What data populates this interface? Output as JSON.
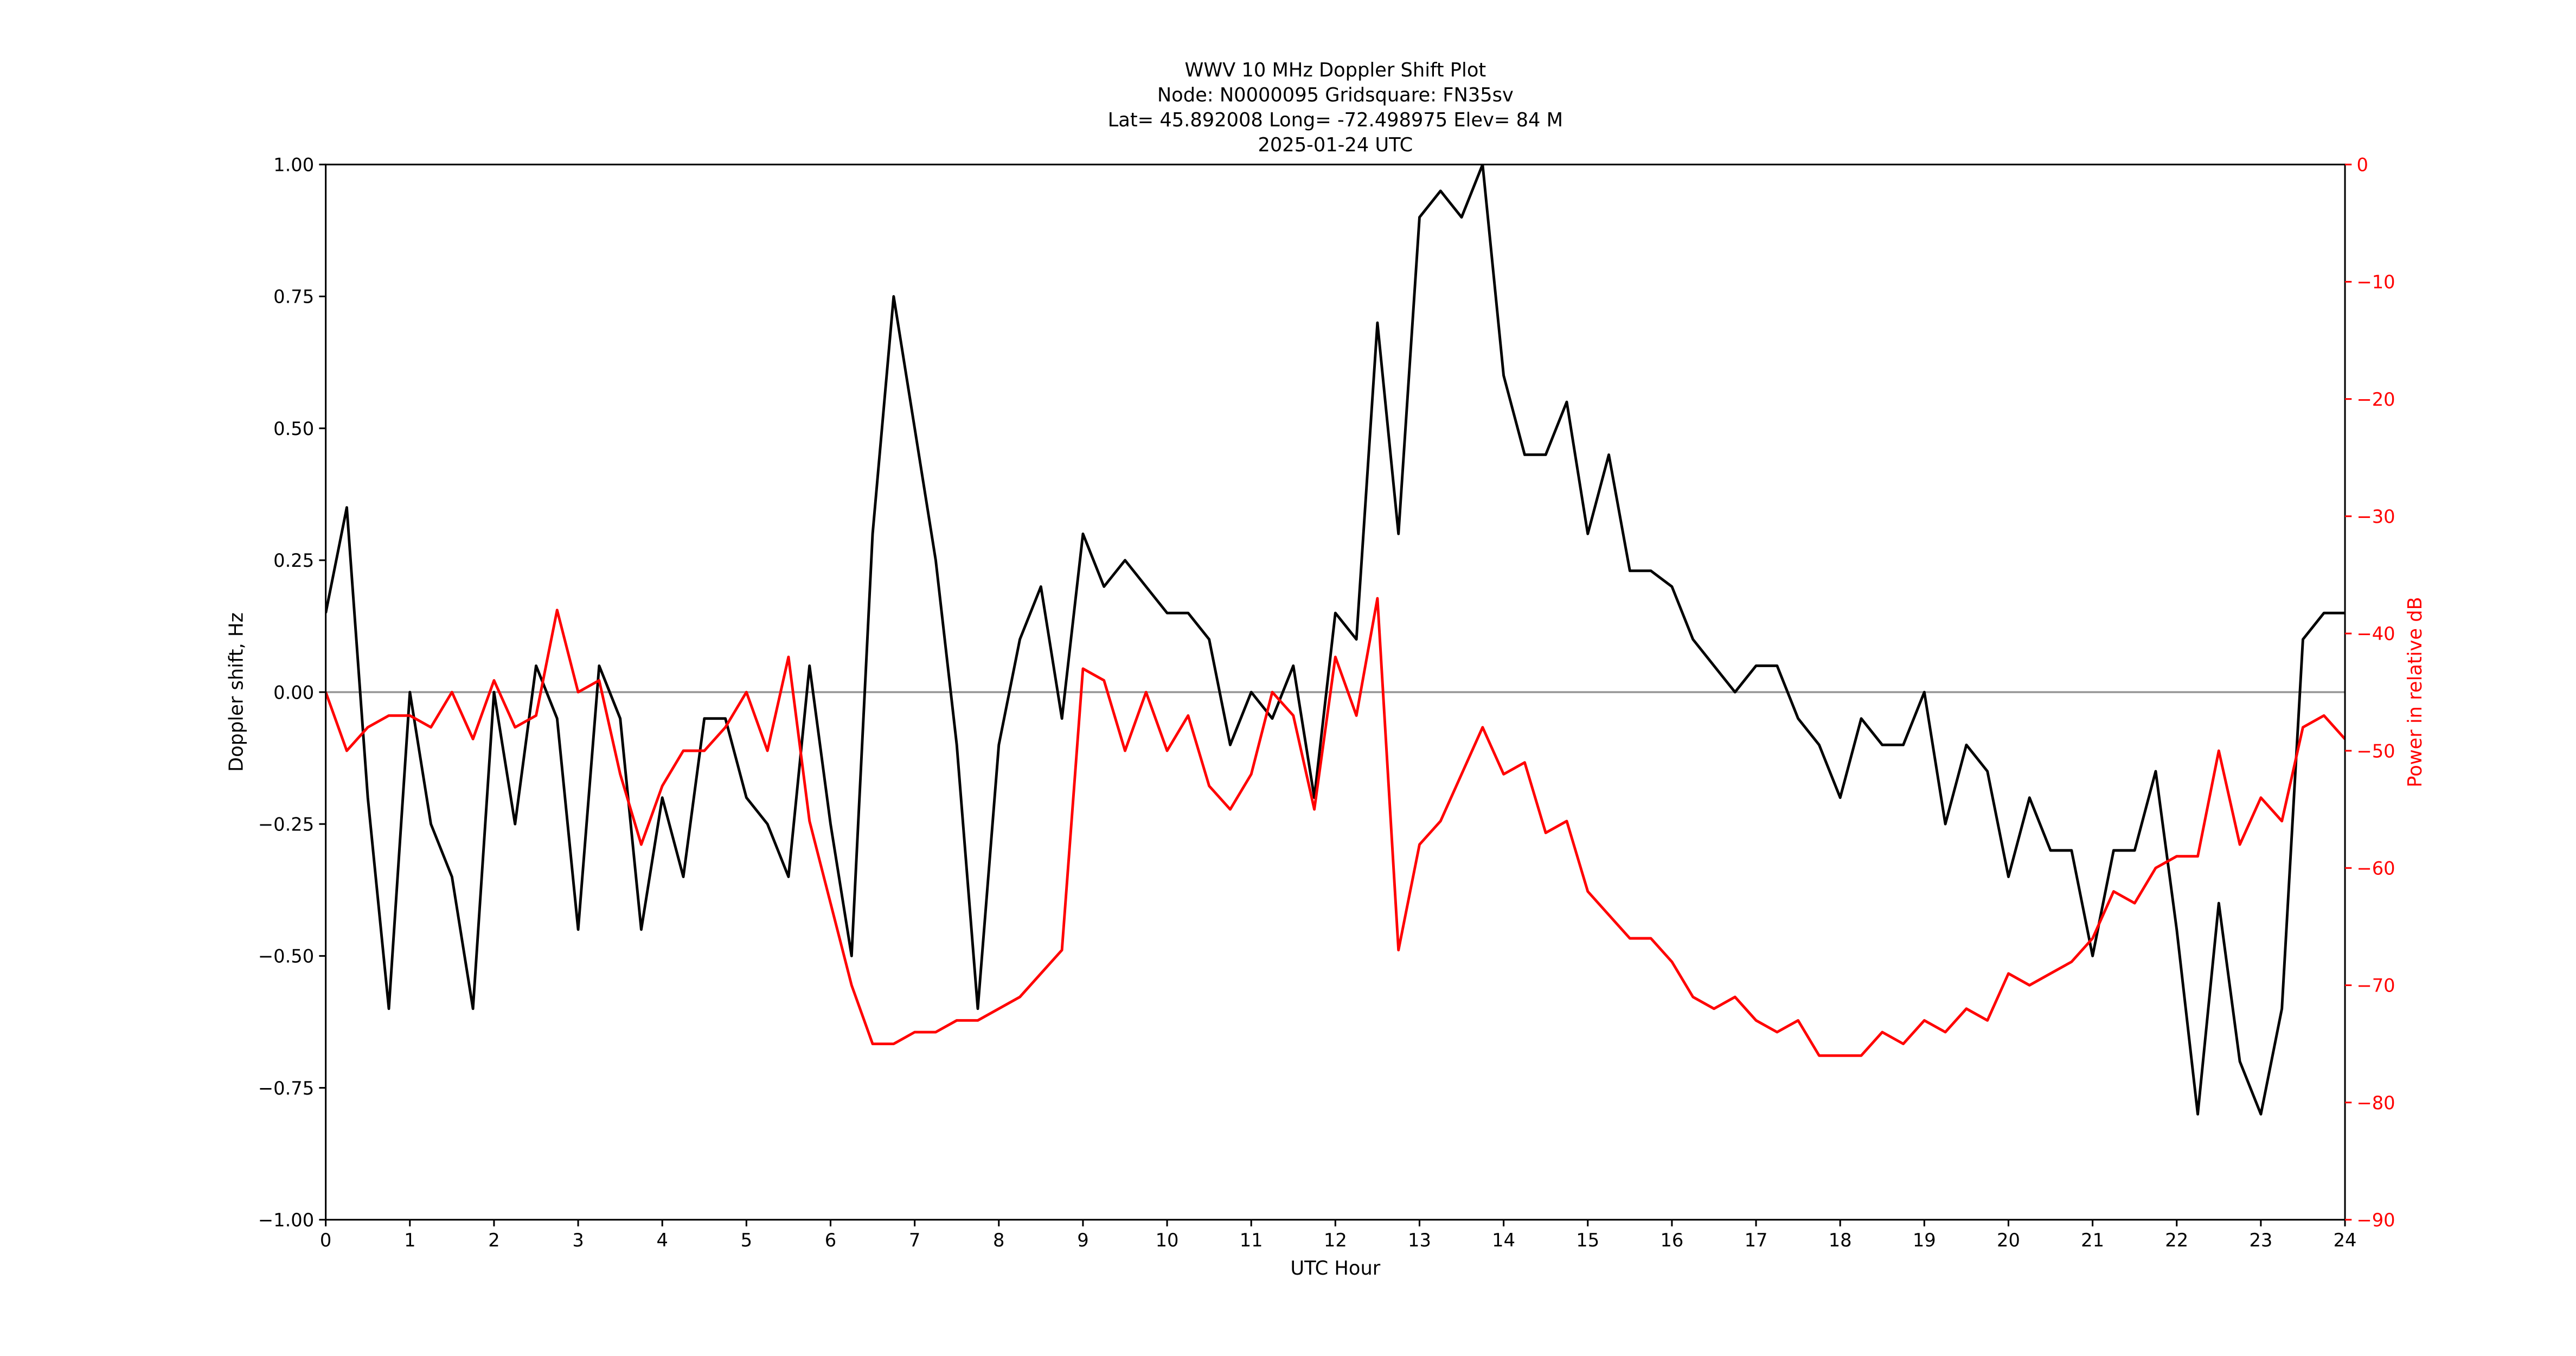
{
  "chart_data": {
    "type": "line",
    "title": [
      "WWV 10 MHz Doppler Shift Plot",
      "Node:  N0000095     Gridsquare:  FN35sv",
      "Lat= 45.892008    Long= -72.498975    Elev= 84 M",
      "2025-01-24  UTC"
    ],
    "x_label": "UTC Hour",
    "y_label": "Doppler shift, Hz",
    "y2_label": "Power in relative dB",
    "x": [
      0,
      0.25,
      0.5,
      0.75,
      1,
      1.25,
      1.5,
      1.75,
      2,
      2.25,
      2.5,
      2.75,
      3,
      3.25,
      3.5,
      3.75,
      4,
      4.25,
      4.5,
      4.75,
      5,
      5.25,
      5.5,
      5.75,
      6,
      6.25,
      6.5,
      6.75,
      7,
      7.25,
      7.5,
      7.75,
      8,
      8.25,
      8.5,
      8.75,
      9,
      9.25,
      9.5,
      9.75,
      10,
      10.25,
      10.5,
      10.75,
      11,
      11.25,
      11.5,
      11.75,
      12,
      12.25,
      12.5,
      12.75,
      13,
      13.25,
      13.5,
      13.75,
      14,
      14.25,
      14.5,
      14.75,
      15,
      15.25,
      15.5,
      15.75,
      16,
      16.25,
      16.5,
      16.75,
      17,
      17.25,
      17.5,
      17.75,
      18,
      18.25,
      18.5,
      18.75,
      19,
      19.25,
      19.5,
      19.75,
      20,
      20.25,
      20.5,
      20.75,
      21,
      21.25,
      21.5,
      21.75,
      22,
      22.25,
      22.5,
      22.75,
      23,
      23.25,
      23.5,
      23.75,
      24
    ],
    "series": [
      {
        "name": "Doppler shift",
        "color": "#000000",
        "axis": "y",
        "values": [
          0.15,
          0.35,
          -0.2,
          -0.6,
          0.0,
          -0.25,
          -0.35,
          -0.6,
          0.0,
          -0.25,
          0.05,
          -0.05,
          -0.45,
          0.05,
          -0.05,
          -0.45,
          -0.2,
          -0.35,
          -0.05,
          -0.05,
          -0.2,
          -0.25,
          -0.35,
          0.05,
          -0.25,
          -0.5,
          0.3,
          0.75,
          0.5,
          0.25,
          -0.1,
          -0.6,
          -0.1,
          0.1,
          0.2,
          -0.05,
          0.3,
          0.2,
          0.25,
          0.2,
          0.15,
          0.15,
          0.1,
          -0.1,
          0.0,
          -0.05,
          0.05,
          -0.2,
          0.15,
          0.1,
          0.7,
          0.3,
          0.9,
          0.95,
          0.9,
          1.0,
          0.6,
          0.45,
          0.45,
          0.55,
          0.3,
          0.45,
          0.23,
          0.23,
          0.2,
          0.1,
          0.05,
          0.0,
          0.05,
          0.05,
          -0.05,
          -0.1,
          -0.2,
          -0.05,
          -0.1,
          -0.1,
          0.0,
          -0.25,
          -0.1,
          -0.15,
          -0.35,
          -0.2,
          -0.3,
          -0.3,
          -0.5,
          -0.3,
          -0.3,
          -0.15,
          -0.45,
          -0.8,
          -0.4,
          -0.7,
          -0.8,
          -0.6,
          0.1,
          0.15,
          0.15
        ]
      },
      {
        "name": "Power",
        "color": "#ff0000",
        "axis": "y2",
        "values": [
          -45,
          -50,
          -48,
          -47,
          -47,
          -48,
          -45,
          -49,
          -44,
          -48,
          -47,
          -38,
          -45,
          -44,
          -52,
          -58,
          -53,
          -50,
          -50,
          -48,
          -45,
          -50,
          -42,
          -56,
          -63,
          -70,
          -75,
          -75,
          -74,
          -74,
          -73,
          -73,
          -72,
          -71,
          -69,
          -67,
          -43,
          -44,
          -50,
          -45,
          -50,
          -47,
          -53,
          -55,
          -52,
          -45,
          -47,
          -55,
          -42,
          -47,
          -37,
          -67,
          -58,
          -56,
          -52,
          -48,
          -52,
          -51,
          -57,
          -56,
          -62,
          -64,
          -66,
          -66,
          -68,
          -71,
          -72,
          -71,
          -73,
          -74,
          -73,
          -76,
          -76,
          -76,
          -74,
          -75,
          -73,
          -74,
          -72,
          -73,
          -69,
          -70,
          -69,
          -68,
          -66,
          -62,
          -63,
          -60,
          -59,
          -59,
          -50,
          -58,
          -54,
          -56,
          -48,
          -47,
          -49
        ]
      }
    ],
    "xlim": [
      0,
      24
    ],
    "xticks": [
      0,
      1,
      2,
      3,
      4,
      5,
      6,
      7,
      8,
      9,
      10,
      11,
      12,
      13,
      14,
      15,
      16,
      17,
      18,
      19,
      20,
      21,
      22,
      23,
      24
    ],
    "ylim": [
      -1,
      1
    ],
    "yticks": [
      {
        "value": -1,
        "label": "−1.00"
      },
      {
        "value": -0.75,
        "label": "−0.75"
      },
      {
        "value": -0.5,
        "label": "−0.50"
      },
      {
        "value": -0.25,
        "label": "−0.25"
      },
      {
        "value": 0,
        "label": "0.00"
      },
      {
        "value": 0.25,
        "label": "0.25"
      },
      {
        "value": 0.5,
        "label": "0.50"
      },
      {
        "value": 0.75,
        "label": "0.75"
      },
      {
        "value": 1,
        "label": "1.00"
      }
    ],
    "y2lim": [
      -90,
      0
    ],
    "y2ticks": [
      {
        "value": -90,
        "label": "−90"
      },
      {
        "value": -80,
        "label": "−80"
      },
      {
        "value": -70,
        "label": "−70"
      },
      {
        "value": -60,
        "label": "−60"
      },
      {
        "value": -50,
        "label": "−50"
      },
      {
        "value": -40,
        "label": "−40"
      },
      {
        "value": -30,
        "label": "−30"
      },
      {
        "value": -20,
        "label": "−20"
      },
      {
        "value": -10,
        "label": "−10"
      },
      0
    ],
    "y2_color": "#ff0000",
    "hline": 0,
    "hline_color": "#999999"
  }
}
